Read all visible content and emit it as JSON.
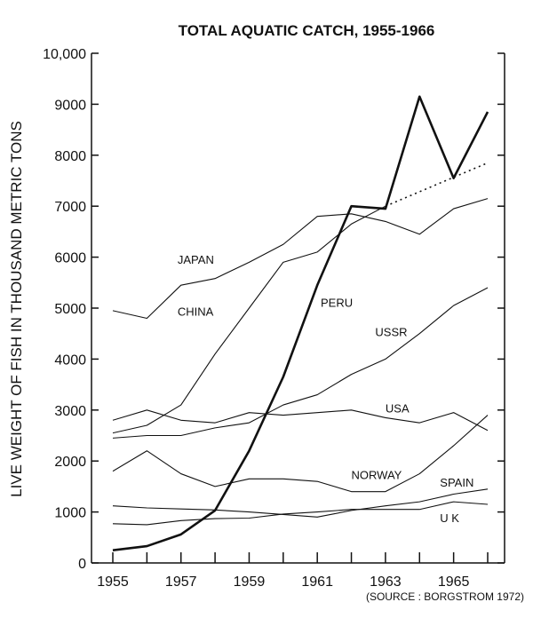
{
  "chart_data": {
    "type": "line",
    "title": "TOTAL AQUATIC CATCH, 1955-1966",
    "ylabel": "LIVE WEIGHT OF FISH IN THOUSAND METRIC TONS",
    "xlabel": "",
    "source": "(SOURCE : BORGSTROM 1972)",
    "x": [
      1955,
      1956,
      1957,
      1958,
      1959,
      1960,
      1961,
      1962,
      1963,
      1964,
      1965,
      1966
    ],
    "xlim": [
      1955,
      1966
    ],
    "ylim": [
      0,
      10000
    ],
    "xtick_labels": [
      "1955",
      "1957",
      "1959",
      "1961",
      "1963",
      "1965"
    ],
    "ytick_labels": [
      "0",
      "1000",
      "2000",
      "3000",
      "4000",
      "5000",
      "6000",
      "7000",
      "8000",
      "9000",
      "10,000"
    ],
    "grid": false,
    "series": [
      {
        "name": "PERU",
        "bold": true,
        "values": [
          250,
          330,
          560,
          1030,
          2200,
          3650,
          5450,
          7000,
          6950,
          9150,
          7550,
          8850
        ]
      },
      {
        "name": "PERU trend",
        "dotted": true,
        "x": [
          1963,
          1966
        ],
        "values": [
          7000,
          7850
        ]
      },
      {
        "name": "JAPAN",
        "values": [
          4950,
          4800,
          5450,
          5580,
          5900,
          6250,
          6800,
          6850,
          6700,
          6450,
          6950,
          7150
        ]
      },
      {
        "name": "CHINA",
        "values": [
          2550,
          2700,
          3100,
          4100,
          5000,
          5900,
          6100,
          6650,
          7000,
          null,
          null,
          null
        ]
      },
      {
        "name": "USSR",
        "values": [
          2450,
          2500,
          2500,
          2650,
          2750,
          3100,
          3300,
          3700,
          4000,
          4500,
          5050,
          5400
        ]
      },
      {
        "name": "USA",
        "values": [
          2800,
          3000,
          2800,
          2750,
          2950,
          2900,
          2950,
          3000,
          2850,
          2750,
          2950,
          2600
        ]
      },
      {
        "name": "NORWAY",
        "values": [
          1800,
          2200,
          1750,
          1500,
          1650,
          1650,
          1600,
          1400,
          1400,
          1750,
          2300,
          2900
        ]
      },
      {
        "name": "SPAIN",
        "values": [
          1120,
          1080,
          1060,
          1040,
          1000,
          950,
          900,
          1030,
          1120,
          1200,
          1350,
          1450
        ]
      },
      {
        "name": "U K",
        "values": [
          770,
          750,
          830,
          870,
          880,
          960,
          1000,
          1050,
          1050,
          1050,
          1200,
          1150
        ]
      }
    ],
    "labels": [
      {
        "text": "JAPAN",
        "x": 1956.9,
        "y": 5870
      },
      {
        "text": "CHINA",
        "x": 1956.9,
        "y": 4850
      },
      {
        "text": "PERU",
        "x": 1961.1,
        "y": 5030
      },
      {
        "text": "USSR",
        "x": 1962.7,
        "y": 4450
      },
      {
        "text": "USA",
        "x": 1963.0,
        "y": 2950
      },
      {
        "text": "NORWAY",
        "x": 1962.0,
        "y": 1650
      },
      {
        "text": "SPAIN",
        "x": 1964.6,
        "y": 1500
      },
      {
        "text": "U K",
        "x": 1964.6,
        "y": 800
      }
    ]
  }
}
